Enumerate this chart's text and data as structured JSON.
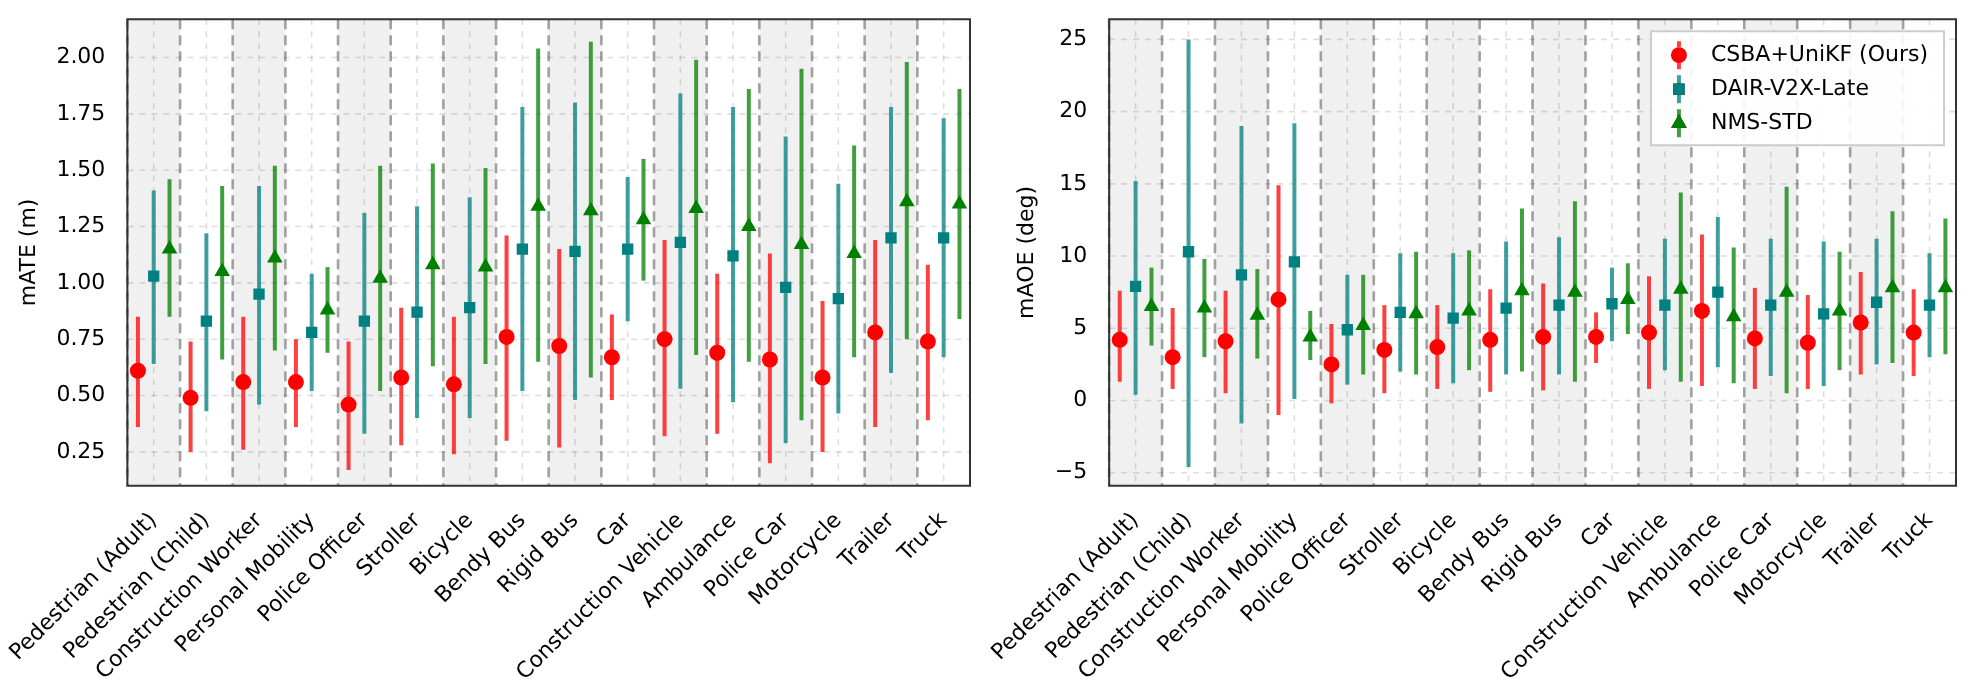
{
  "chart_data": [
    {
      "type": "scatter",
      "ylabel": "mATE (m)",
      "categories": [
        "Pedestrian (Adult)",
        "Pedestrian (Child)",
        "Construction Worker",
        "Personal Mobility",
        "Police Officer",
        "Stroller",
        "Bicycle",
        "Bendy Bus",
        "Rigid Bus",
        "Car",
        "Construction Vehicle",
        "Ambulance",
        "Police Car",
        "Motorcycle",
        "Trailer",
        "Truck"
      ],
      "series": [
        {
          "color": "#ff0000",
          "marker": "circle",
          "values": [
            0.61,
            0.49,
            0.56,
            0.56,
            0.46,
            0.58,
            0.55,
            0.76,
            0.72,
            0.67,
            0.75,
            0.69,
            0.66,
            0.58,
            0.78,
            0.74
          ],
          "errors": [
            [
              0.36,
              0.85
            ],
            [
              0.25,
              0.74
            ],
            [
              0.26,
              0.85
            ],
            [
              0.36,
              0.75
            ],
            [
              0.17,
              0.74
            ],
            [
              0.28,
              0.89
            ],
            [
              0.24,
              0.85
            ],
            [
              0.3,
              1.21
            ],
            [
              0.27,
              1.15
            ],
            [
              0.48,
              0.86
            ],
            [
              0.32,
              1.19
            ],
            [
              0.33,
              1.04
            ],
            [
              0.2,
              1.13
            ],
            [
              0.25,
              0.92
            ],
            [
              0.36,
              1.19
            ],
            [
              0.39,
              1.08
            ]
          ]
        },
        {
          "color": "#008080",
          "marker": "square",
          "values": [
            1.03,
            0.83,
            0.95,
            0.78,
            0.83,
            0.87,
            0.89,
            1.15,
            1.14,
            1.15,
            1.18,
            1.12,
            0.98,
            0.93,
            1.2,
            1.2
          ],
          "errors": [
            [
              0.64,
              1.41
            ],
            [
              0.43,
              1.22
            ],
            [
              0.46,
              1.43
            ],
            [
              0.52,
              1.04
            ],
            [
              0.33,
              1.31
            ],
            [
              0.4,
              1.34
            ],
            [
              0.4,
              1.38
            ],
            [
              0.52,
              1.78
            ],
            [
              0.48,
              1.8
            ],
            [
              0.83,
              1.47
            ],
            [
              0.53,
              1.84
            ],
            [
              0.47,
              1.78
            ],
            [
              0.29,
              1.65
            ],
            [
              0.42,
              1.44
            ],
            [
              0.6,
              1.78
            ],
            [
              0.67,
              1.73
            ]
          ]
        },
        {
          "color": "#008000",
          "marker": "triangle",
          "values": [
            1.15,
            1.05,
            1.11,
            0.88,
            1.02,
            1.08,
            1.07,
            1.34,
            1.32,
            1.28,
            1.33,
            1.25,
            1.17,
            1.13,
            1.36,
            1.35
          ],
          "errors": [
            [
              0.85,
              1.46
            ],
            [
              0.66,
              1.43
            ],
            [
              0.7,
              1.52
            ],
            [
              0.69,
              1.07
            ],
            [
              0.52,
              1.52
            ],
            [
              0.63,
              1.53
            ],
            [
              0.64,
              1.51
            ],
            [
              0.65,
              2.04
            ],
            [
              0.58,
              2.07
            ],
            [
              1.01,
              1.55
            ],
            [
              0.68,
              1.99
            ],
            [
              0.65,
              1.86
            ],
            [
              0.39,
              1.95
            ],
            [
              0.67,
              1.61
            ],
            [
              0.75,
              1.98
            ],
            [
              0.84,
              1.86
            ]
          ]
        }
      ],
      "ylim": [
        0.1,
        2.17
      ],
      "yticks": [
        0.25,
        {
          "value": 0.5,
          "label": "0.50"
        },
        0.75,
        {
          "value": 1,
          "label": "1.00"
        },
        1.25,
        {
          "value": 1.5,
          "label": "1.50"
        },
        1.75,
        {
          "value": 2,
          "label": "2.00"
        }
      ],
      "bands": [
        {
          "axis": "x",
          "from": "Pedestrian (Adult)",
          "to": "Pedestrian (Adult)",
          "color": "#f0f0f0"
        },
        {
          "axis": "x",
          "from": "Construction Worker",
          "to": "Construction Worker",
          "color": "#f0f0f0"
        },
        {
          "axis": "x",
          "from": "Police Officer",
          "to": "Police Officer",
          "color": "#f0f0f0"
        },
        {
          "axis": "x",
          "from": "Bicycle",
          "to": "Bicycle",
          "color": "#f0f0f0"
        },
        {
          "axis": "x",
          "from": "Rigid Bus",
          "to": "Rigid Bus",
          "color": "#f0f0f0"
        },
        {
          "axis": "x",
          "from": "Construction Vehicle",
          "to": "Construction Vehicle",
          "color": "#f0f0f0"
        },
        {
          "axis": "x",
          "from": "Police Car",
          "to": "Police Car",
          "color": "#f0f0f0"
        },
        {
          "axis": "x",
          "from": "Trailer",
          "to": "Trailer",
          "color": "#f0f0f0"
        }
      ],
      "grid": true
    },
    {
      "type": "scatter",
      "ylabel": "mAOE (deg)",
      "categories": [
        "Pedestrian (Adult)",
        "Pedestrian (Child)",
        "Construction Worker",
        "Personal Mobility",
        "Police Officer",
        "Stroller",
        "Bicycle",
        "Bendy Bus",
        "Rigid Bus",
        "Car",
        "Construction Vehicle",
        "Ambulance",
        "Police Car",
        "Motorcycle",
        "Trailer",
        "Truck"
      ],
      "series": [
        {
          "name": "CSBA+UniKF (Ours)",
          "color": "#ff0000",
          "marker": "circle",
          "values": [
            4.2,
            3.0,
            4.1,
            7.0,
            2.5,
            3.5,
            3.7,
            4.2,
            4.4,
            4.4,
            4.7,
            6.2,
            4.3,
            4.0,
            5.4,
            4.7
          ],
          "errors": [
            [
              1.3,
              7.6
            ],
            [
              0.8,
              6.4
            ],
            [
              0.5,
              7.6
            ],
            [
              -1.0,
              14.9
            ],
            [
              -0.2,
              5.3
            ],
            [
              0.5,
              6.6
            ],
            [
              0.8,
              6.6
            ],
            [
              0.6,
              7.7
            ],
            [
              0.7,
              8.1
            ],
            [
              2.6,
              6.1
            ],
            [
              0.8,
              8.6
            ],
            [
              1.0,
              11.5
            ],
            [
              0.8,
              7.8
            ],
            [
              0.8,
              7.3
            ],
            [
              1.8,
              8.9
            ],
            [
              1.7,
              7.7
            ]
          ]
        },
        {
          "name": "DAIR-V2X-Late",
          "color": "#008080",
          "marker": "square",
          "values": [
            7.9,
            10.3,
            8.7,
            9.6,
            4.9,
            6.1,
            5.7,
            6.4,
            6.6,
            6.7,
            6.6,
            7.5,
            6.6,
            6.0,
            6.8,
            6.6
          ],
          "errors": [
            [
              0.4,
              15.2
            ],
            [
              -4.6,
              25.0
            ],
            [
              -1.6,
              19.0
            ],
            [
              0.1,
              19.2
            ],
            [
              1.1,
              8.7
            ],
            [
              2.0,
              10.2
            ],
            [
              1.2,
              10.2
            ],
            [
              1.8,
              11.0
            ],
            [
              1.8,
              11.3
            ],
            [
              4.1,
              9.2
            ],
            [
              2.1,
              11.2
            ],
            [
              2.3,
              12.7
            ],
            [
              1.7,
              11.2
            ],
            [
              1.0,
              11.0
            ],
            [
              2.5,
              11.2
            ],
            [
              3.0,
              10.2
            ]
          ]
        },
        {
          "name": "NMS-STD",
          "color": "#008000",
          "marker": "triangle",
          "values": [
            6.5,
            6.4,
            5.9,
            4.4,
            5.2,
            6.0,
            6.2,
            7.6,
            7.5,
            7.0,
            7.7,
            5.8,
            7.5,
            6.2,
            7.8,
            7.8
          ],
          "errors": [
            [
              3.8,
              9.2
            ],
            [
              3.0,
              9.8
            ],
            [
              2.9,
              9.1
            ],
            [
              2.8,
              6.2
            ],
            [
              1.8,
              8.7
            ],
            [
              1.8,
              10.3
            ],
            [
              2.1,
              10.4
            ],
            [
              2.0,
              13.3
            ],
            [
              1.3,
              13.8
            ],
            [
              4.6,
              9.5
            ],
            [
              1.3,
              14.4
            ],
            [
              1.2,
              10.6
            ],
            [
              0.5,
              14.8
            ],
            [
              2.1,
              10.3
            ],
            [
              2.6,
              13.1
            ],
            [
              3.2,
              12.6
            ]
          ]
        }
      ],
      "ylim": [
        -5.9,
        26.4
      ],
      "yticks": [
        {
          "value": -5,
          "label": "−5"
        },
        0,
        5,
        10,
        15,
        20,
        25
      ],
      "bands": [
        {
          "axis": "x",
          "from": "Pedestrian (Adult)",
          "to": "Pedestrian (Adult)",
          "color": "#f0f0f0"
        },
        {
          "axis": "x",
          "from": "Construction Worker",
          "to": "Construction Worker",
          "color": "#f0f0f0"
        },
        {
          "axis": "x",
          "from": "Police Officer",
          "to": "Police Officer",
          "color": "#f0f0f0"
        },
        {
          "axis": "x",
          "from": "Bicycle",
          "to": "Bicycle",
          "color": "#f0f0f0"
        },
        {
          "axis": "x",
          "from": "Rigid Bus",
          "to": "Rigid Bus",
          "color": "#f0f0f0"
        },
        {
          "axis": "x",
          "from": "Construction Vehicle",
          "to": "Construction Vehicle",
          "color": "#f0f0f0"
        },
        {
          "axis": "x",
          "from": "Police Car",
          "to": "Police Car",
          "color": "#f0f0f0"
        },
        {
          "axis": "x",
          "from": "Trailer",
          "to": "Trailer",
          "color": "#f0f0f0"
        }
      ],
      "grid": true,
      "legend": "top right"
    }
  ]
}
